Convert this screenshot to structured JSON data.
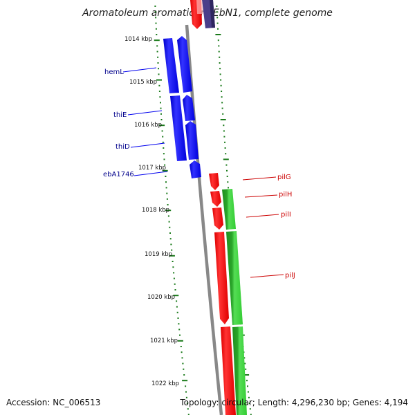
{
  "title": "Aromatoleum aromaticum EbN1, complete genome",
  "footer": {
    "accession": "Accession: NC_006513",
    "summary": "Topology: circular; Length: 4,296,230 bp; Genes: 4,194"
  },
  "colors": {
    "backbone": "#888888",
    "ticks": "#1a7a1a",
    "blue_gene": "#0000ee",
    "blue_label": "#00008b",
    "red_gene": "#ff0000",
    "red_label": "#cc0000",
    "green_gene": "#33cc33",
    "purple_gene": "#4a3f8a"
  },
  "kbp_labels": [
    "1014 kbp",
    "1015 kbp",
    "1016 kbp",
    "1017 kbp",
    "1018 kbp",
    "1019 kbp",
    "1020 kbp",
    "1021 kbp",
    "1022 kbp"
  ],
  "gene_labels": {
    "left": [
      "hemL",
      "thiE",
      "thiD",
      "ebA1746"
    ],
    "right": [
      "pilG",
      "pilH",
      "pilI",
      "pilJ"
    ]
  }
}
